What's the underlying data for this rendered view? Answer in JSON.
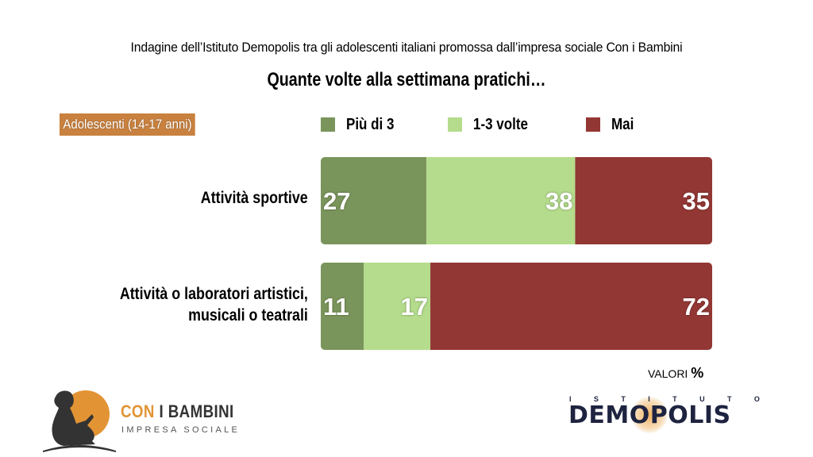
{
  "header": {
    "subtitle": "Indagine dell’Istituto Demopolis tra gli adolescenti italiani promossa dall’impresa sociale Con i Bambini",
    "title": "Quante volte alla settimana pratichi…"
  },
  "badge": "Adolescenti (14-17 anni)",
  "colors": {
    "piu_di_3": "#7a955b",
    "uno_tre_volte": "#b4dc8c",
    "mai": "#933734",
    "badge": "#c8813f",
    "brand_orange": "#e29434",
    "demopolis_navy": "#1e2340"
  },
  "chart_data": {
    "type": "bar",
    "orientation": "horizontal",
    "stacked": true,
    "title": "Quante volte alla settimana pratichi…",
    "subtitle": "Indagine dell’Istituto Demopolis tra gli adolescenti italiani promossa dall’impresa sociale Con i Bambini",
    "categories": [
      "Attività sportive",
      "Attività o laboratori artistici, musicali o teatrali"
    ],
    "category_lines": [
      [
        "Attività sportive"
      ],
      [
        "Attività o laboratori artistici,",
        "musicali o teatrali"
      ]
    ],
    "series": [
      {
        "name": "Più di 3",
        "color": "#7a955b",
        "values": [
          27,
          11
        ]
      },
      {
        "name": "1-3 volte",
        "color": "#b4dc8c",
        "values": [
          38,
          17
        ]
      },
      {
        "name": "Mai",
        "color": "#933734",
        "values": [
          35,
          72
        ]
      }
    ],
    "xlim": [
      0,
      100
    ],
    "unit": "%",
    "legend_position": "top",
    "grid": false,
    "data_labels": true
  },
  "footer": {
    "valori_label": "VALORI",
    "valori_unit": "%"
  },
  "logos": {
    "con_i_bambini": {
      "word1": "CON",
      "word2": "I BAMBINI",
      "tagline": "IMPRESA SOCIALE"
    },
    "demopolis": {
      "top": [
        "I",
        "S",
        "T",
        "I",
        "T",
        "U",
        "T",
        "O"
      ],
      "name": "DEMOPOLIS"
    }
  }
}
